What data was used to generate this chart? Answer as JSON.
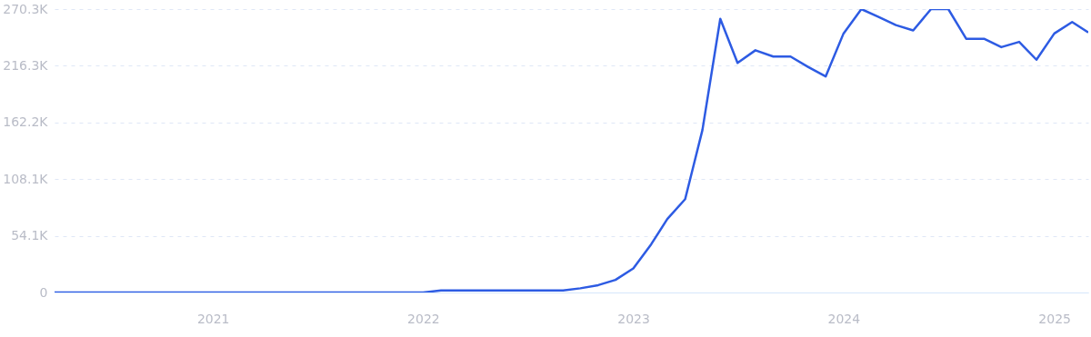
{
  "chart_data": {
    "type": "line",
    "x": [
      "2020-04",
      "2020-05",
      "2020-06",
      "2020-07",
      "2020-08",
      "2020-09",
      "2020-10",
      "2020-11",
      "2020-12",
      "2021-01",
      "2021-02",
      "2021-03",
      "2021-04",
      "2021-05",
      "2021-06",
      "2021-07",
      "2021-08",
      "2021-09",
      "2021-10",
      "2021-11",
      "2021-12",
      "2022-01",
      "2022-02",
      "2022-03",
      "2022-04",
      "2022-05",
      "2022-06",
      "2022-07",
      "2022-08",
      "2022-09",
      "2022-10",
      "2022-11",
      "2022-12",
      "2023-01",
      "2023-02",
      "2023-03",
      "2023-04",
      "2023-05",
      "2023-06",
      "2023-07",
      "2023-08",
      "2023-09",
      "2023-10",
      "2023-11",
      "2023-12",
      "2024-01",
      "2024-02",
      "2024-03",
      "2024-04",
      "2024-05",
      "2024-06",
      "2024-07",
      "2024-08",
      "2024-09",
      "2024-10",
      "2024-11",
      "2024-12",
      "2025-01",
      "2025-02",
      "2025-03"
    ],
    "series": [
      {
        "color": "#2d5be3",
        "values": [
          0,
          0,
          0,
          0,
          0,
          0,
          0,
          0,
          0,
          0,
          0,
          0,
          0,
          0,
          0,
          0,
          0,
          0,
          0,
          0,
          0,
          0,
          2000,
          2000,
          2000,
          2000,
          2000,
          2000,
          2000,
          2000,
          4000,
          7000,
          12000,
          23000,
          46000,
          70000,
          89000,
          155000,
          261000,
          219000,
          231000,
          225000,
          225000,
          215000,
          206000,
          247000,
          270300,
          263000,
          255000,
          250000,
          270300,
          270300,
          242000,
          242000,
          234000,
          239000,
          222000,
          247000,
          258000,
          248000
        ]
      }
    ],
    "xlim": [
      "2020-04",
      "2025-03"
    ],
    "xticks": [
      {
        "value": "2021",
        "label": "2021"
      },
      {
        "value": "2022",
        "label": "2022"
      },
      {
        "value": "2023",
        "label": "2023"
      },
      {
        "value": "2024",
        "label": "2024"
      },
      {
        "value": "2025",
        "label": "2025"
      }
    ],
    "ylim": [
      0,
      270300
    ],
    "yticks": [
      {
        "value": 0,
        "label": "0"
      },
      {
        "value": 54100,
        "label": "54.1K"
      },
      {
        "value": 108100,
        "label": "108.1K"
      },
      {
        "value": 162200,
        "label": "162.2K"
      },
      {
        "value": 216300,
        "label": "216.3K"
      },
      {
        "value": 270300,
        "label": "270.3K"
      }
    ],
    "grid": "y"
  }
}
